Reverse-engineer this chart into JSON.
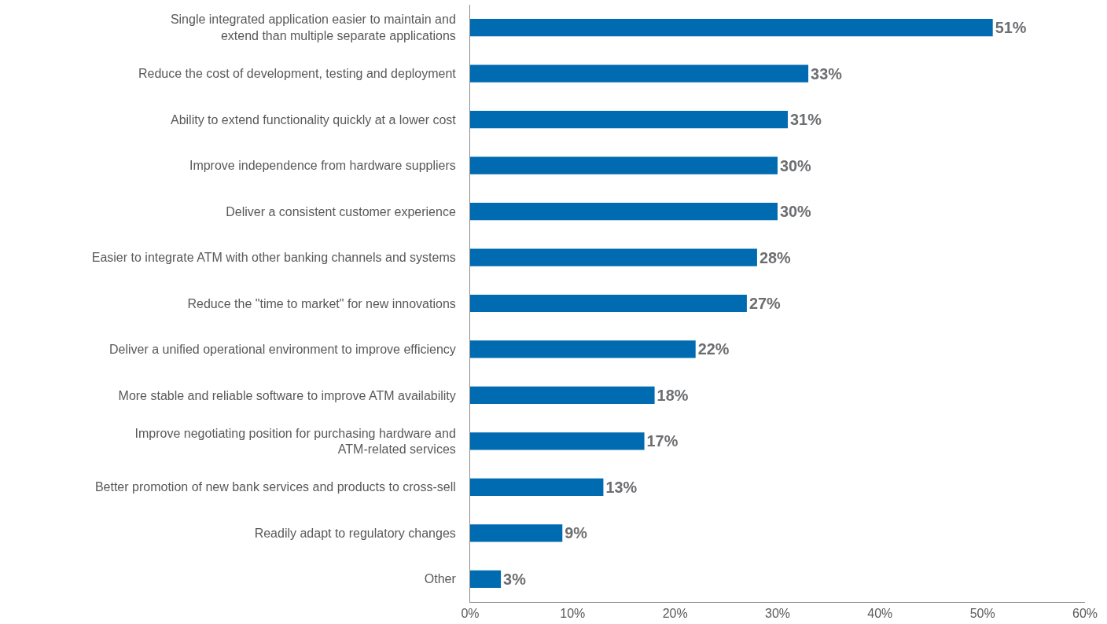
{
  "chart_data": {
    "type": "bar",
    "orientation": "horizontal",
    "categories": [
      "Single integrated application easier to maintain and\nextend than multiple separate applications",
      "Reduce the cost of development, testing and deployment",
      "Ability to extend functionality quickly at a lower cost",
      "Improve independence from hardware suppliers",
      "Deliver a consistent customer experience",
      "Easier to integrate ATM with other banking channels and systems",
      "Reduce the \"time to market\" for new innovations",
      "Deliver a unified operational environment to improve efficiency",
      "More stable and reliable software to improve ATM availability",
      "Improve negotiating position for purchasing hardware and\nATM-related services",
      "Better promotion of new bank services and products to cross-sell",
      "Readily adapt to regulatory changes",
      "Other"
    ],
    "values": [
      51,
      33,
      31,
      30,
      30,
      28,
      27,
      22,
      18,
      17,
      13,
      9,
      3
    ],
    "value_labels": [
      "51%",
      "33%",
      "31%",
      "30%",
      "30%",
      "28%",
      "27%",
      "22%",
      "18%",
      "17%",
      "13%",
      "9%",
      "3%"
    ],
    "color": "#006bb0",
    "xlim": [
      0,
      60
    ],
    "xticks": [
      {
        "value": 0,
        "label": "0%"
      },
      {
        "value": 10,
        "label": "10%"
      },
      {
        "value": 20,
        "label": "20%"
      },
      {
        "value": 30,
        "label": "30%"
      },
      {
        "value": 40,
        "label": "40%"
      },
      {
        "value": 50,
        "label": "50%"
      },
      {
        "value": 60,
        "label": "60%"
      }
    ],
    "grid": false
  }
}
